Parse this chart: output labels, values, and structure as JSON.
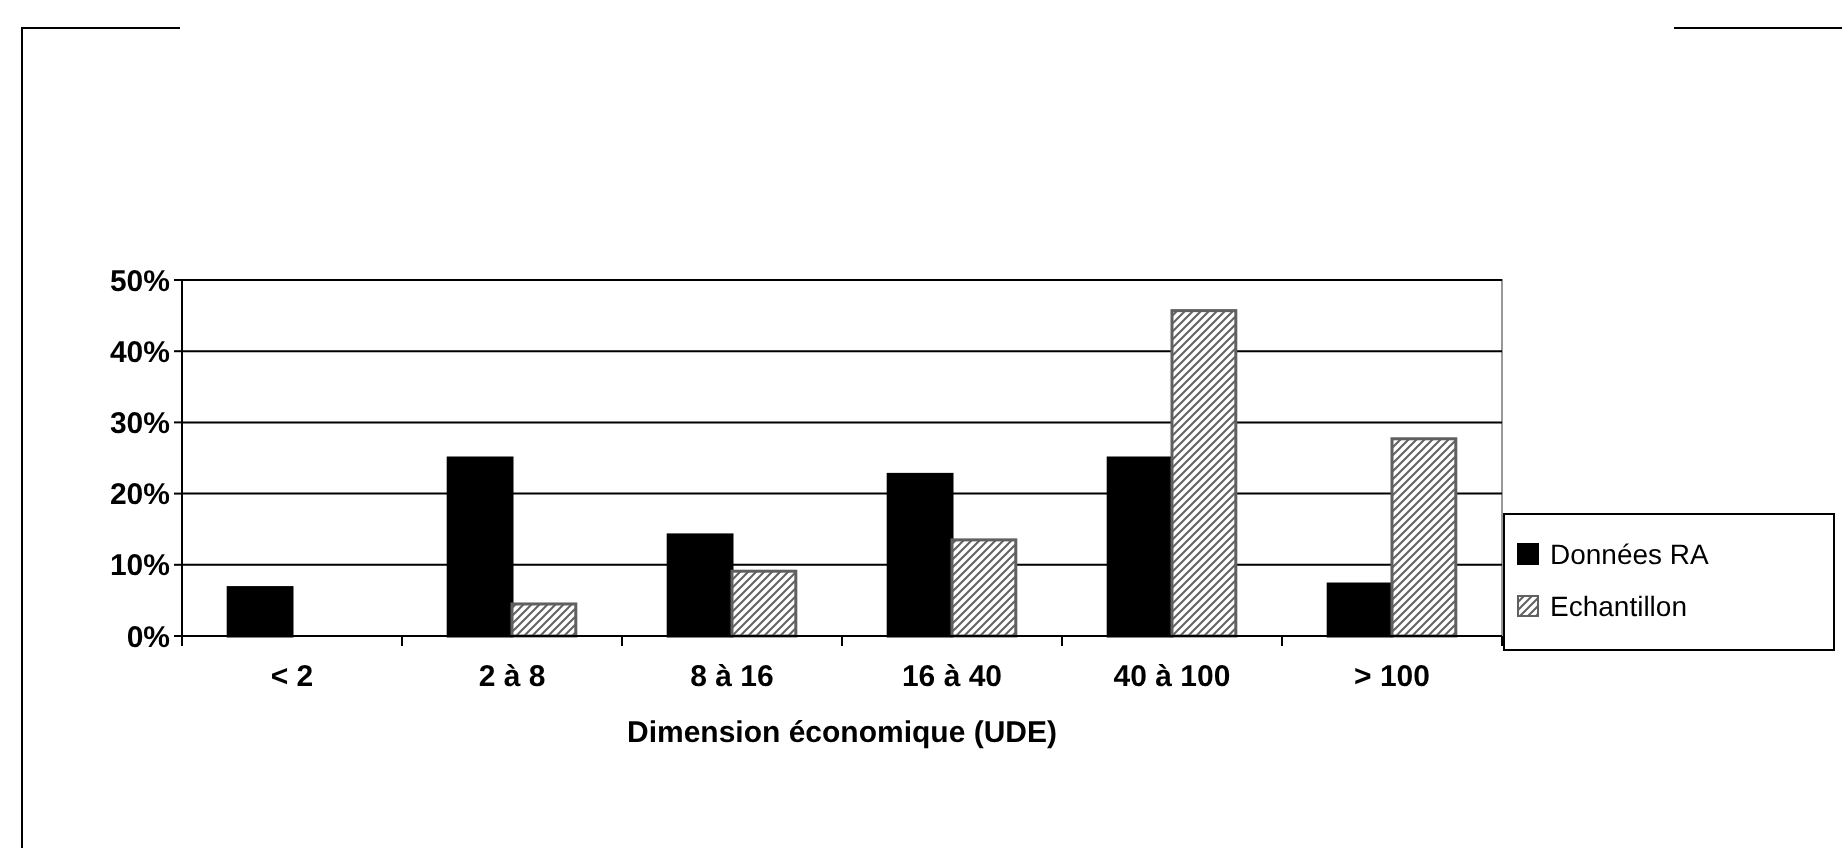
{
  "chart_data": {
    "type": "bar",
    "xlabel": "Dimension économique (UDE)",
    "categories": [
      "< 2",
      "2 à 8",
      "8 à 16",
      "16 à 40",
      "40 à 100",
      "> 100"
    ],
    "series": [
      {
        "name": "Données RA",
        "color": "#000000",
        "values": [
          6.8,
          25,
          14.2,
          22.7,
          25,
          7.3
        ]
      },
      {
        "name": "Echantillon",
        "color": "#606060",
        "values": [
          0,
          4.5,
          9.1,
          13.5,
          45.7,
          27.7
        ]
      }
    ],
    "ylim": [
      0,
      50
    ],
    "yticks": [
      {
        "value": 0,
        "label": "0%"
      },
      {
        "value": 10,
        "label": "10%"
      },
      {
        "value": 20,
        "label": "20%"
      },
      {
        "value": 30,
        "label": "30%"
      },
      {
        "value": 40,
        "label": "40%"
      },
      {
        "value": 50,
        "label": "50%"
      }
    ],
    "grid": "y",
    "legend": "right"
  }
}
